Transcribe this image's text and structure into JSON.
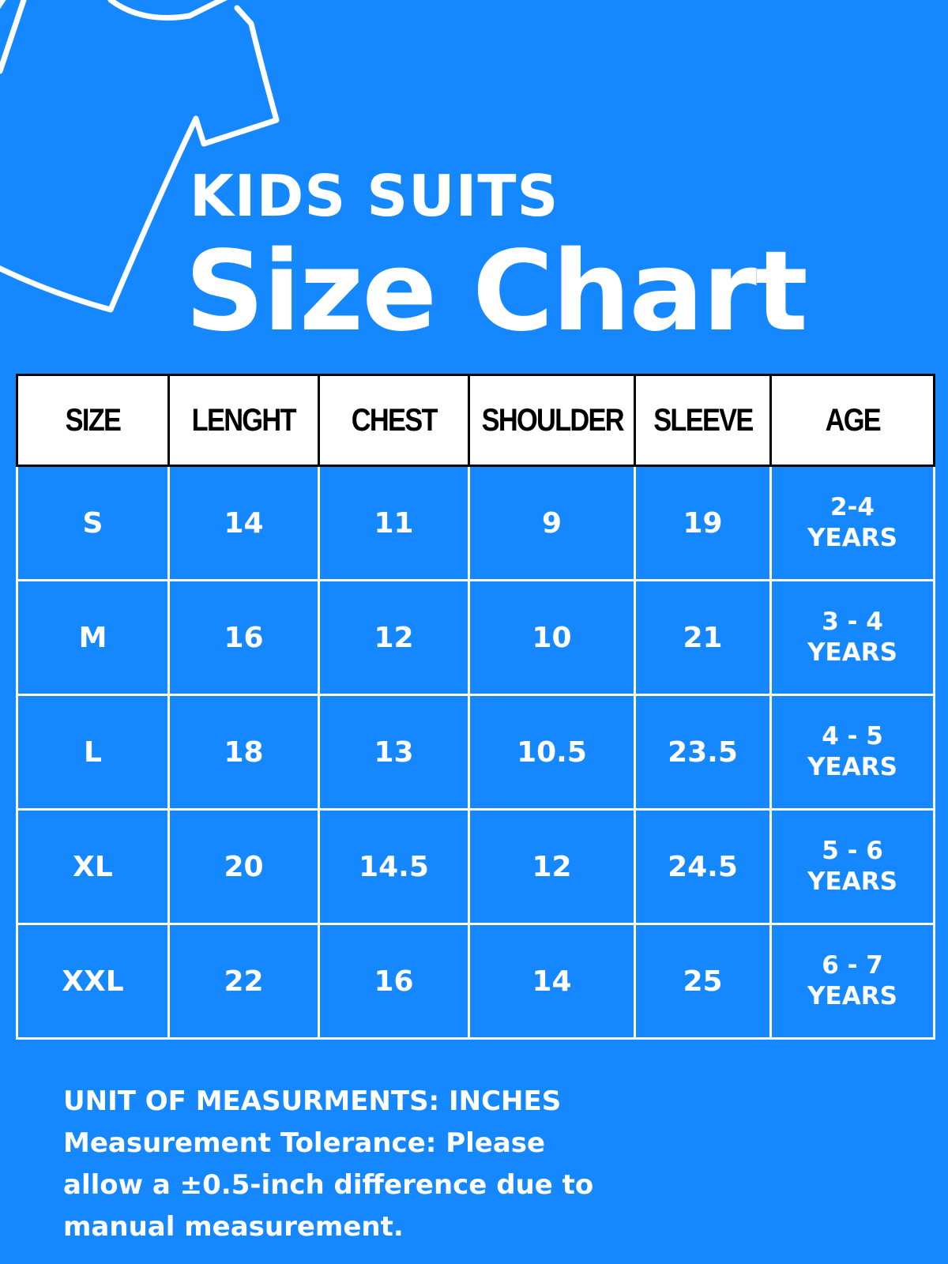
{
  "header": {
    "eyebrow": "KIDS SUITS",
    "title": "Size Chart"
  },
  "table": {
    "columns": [
      "SIZE",
      "LENGHT",
      "CHEST",
      "SHOULDER",
      "SLEEVE",
      "AGE"
    ],
    "rows": [
      {
        "size": "S",
        "length": "14",
        "chest": "11",
        "shoulder": "9",
        "sleeve": "19",
        "age_line1": "2-4",
        "age_line2": "YEARS"
      },
      {
        "size": "M",
        "length": "16",
        "chest": "12",
        "shoulder": "10",
        "sleeve": "21",
        "age_line1": "3 - 4",
        "age_line2": "YEARS"
      },
      {
        "size": "L",
        "length": "18",
        "chest": "13",
        "shoulder": "10.5",
        "sleeve": "23.5",
        "age_line1": "4 - 5",
        "age_line2": "YEARS"
      },
      {
        "size": "XL",
        "length": "20",
        "chest": "14.5",
        "shoulder": "12",
        "sleeve": "24.5",
        "age_line1": "5 - 6",
        "age_line2": "YEARS"
      },
      {
        "size": "XXL",
        "length": "22",
        "chest": "16",
        "shoulder": "14",
        "sleeve": "25",
        "age_line1": "6 - 7",
        "age_line2": "YEARS"
      }
    ]
  },
  "notes": {
    "unit": "UNIT OF MEASURMENTS: INCHES",
    "tolerance": "Measurement Tolerance: Please allow a ±0.5-inch difference due to manual measurement."
  },
  "colors": {
    "background": "#1688FF",
    "header_row": "#FFFFFF",
    "text": "#FFFFFF"
  },
  "icons": {
    "decoration": "t-shirt-outline-icon"
  }
}
